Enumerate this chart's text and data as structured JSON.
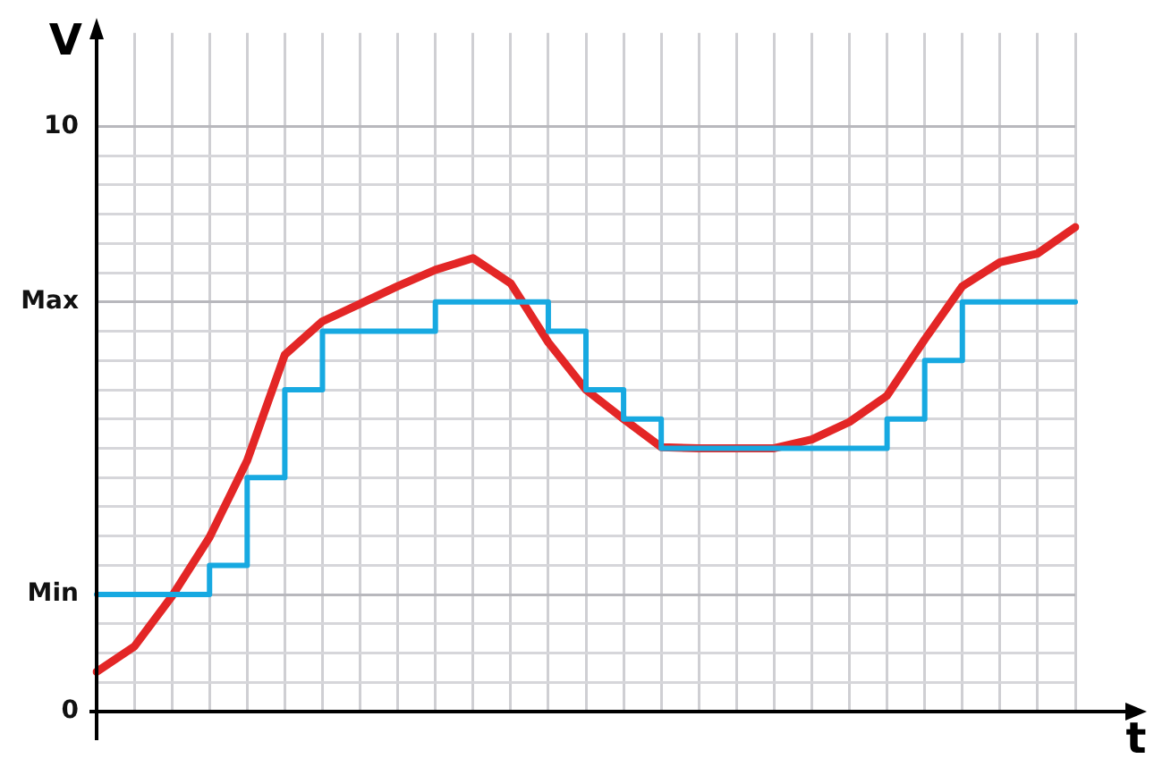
{
  "chart_data": {
    "type": "line",
    "xlabel": "t",
    "ylabel": "V",
    "marker": "none",
    "grid": true,
    "tick_labels": "y",
    "categories": [
      null,
      null,
      null,
      null,
      null,
      null,
      null,
      null,
      null,
      null,
      null,
      null,
      null,
      null,
      null,
      null,
      null,
      null,
      null,
      null,
      null,
      null,
      null,
      null,
      null,
      null,
      null
    ],
    "ylim": [
      0,
      11.6
    ],
    "yticks": [
      0,
      {
        "value": 0.5,
        "label": null
      },
      {
        "value": 1,
        "label": null
      },
      {
        "value": 1.5,
        "label": null
      },
      {
        "value": 2,
        "label": "Min"
      },
      {
        "value": 2.5,
        "label": null
      },
      {
        "value": 3,
        "label": null
      },
      {
        "value": 3.5,
        "label": null
      },
      {
        "value": 4,
        "label": null
      },
      {
        "value": 4.5,
        "label": null
      },
      {
        "value": 5,
        "label": null
      },
      {
        "value": 5.5,
        "label": null
      },
      {
        "value": 6,
        "label": null
      },
      {
        "value": 6.5,
        "label": null
      },
      {
        "value": 7,
        "label": "Max"
      },
      {
        "value": 7.5,
        "label": null
      },
      {
        "value": 8,
        "label": null
      },
      {
        "value": 8.5,
        "label": null
      },
      {
        "value": 9,
        "label": null
      },
      {
        "value": 9.5,
        "label": null
      },
      {
        "value": 10,
        "label": "10"
      }
    ],
    "series": [
      {
        "type": "step",
        "color": "#17a9e1",
        "values": [
          2,
          2,
          2,
          2.5,
          4,
          5.5,
          6.5,
          6.5,
          6.5,
          7,
          7,
          7,
          6.5,
          5.5,
          5,
          4.5,
          4.5,
          4.5,
          4.5,
          4.5,
          4.5,
          5,
          6,
          7,
          7,
          7,
          7
        ]
      },
      {
        "color": "#e32626",
        "values": [
          0.68,
          1.11,
          1.97,
          2.98,
          4.29,
          6.1,
          6.67,
          6.97,
          7.27,
          7.55,
          7.75,
          7.32,
          6.31,
          5.5,
          5,
          4.52,
          4.5,
          4.5,
          4.5,
          4.65,
          4.95,
          5.4,
          6.36,
          7.27,
          7.68,
          7.83,
          8.28
        ]
      }
    ]
  }
}
